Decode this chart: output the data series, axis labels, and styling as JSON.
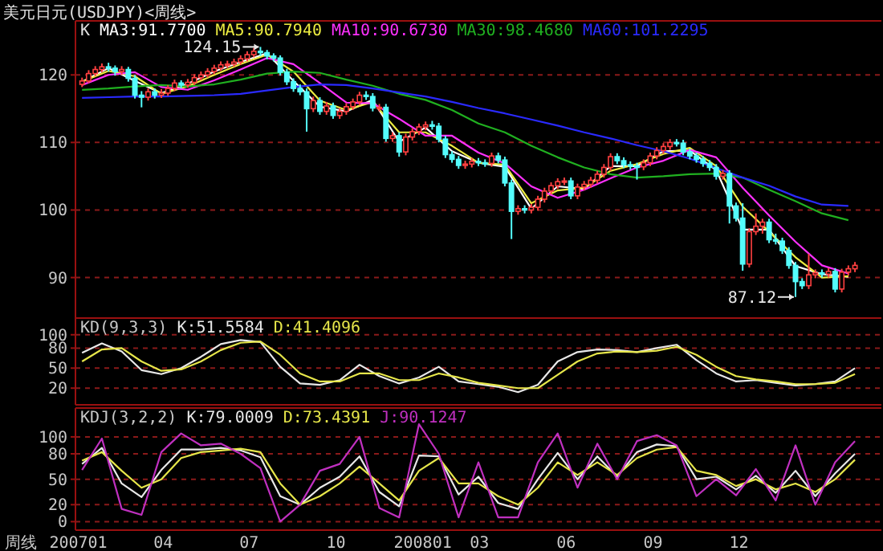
{
  "chart_data": [
    {
      "type": "candlestick",
      "title": "美元日元(USDJPY)<周线>",
      "xlim": [
        "2006-12-29",
        "2009-05-01"
      ],
      "ylim": [
        84,
        128
      ],
      "yticks": [
        90,
        100,
        110,
        120
      ],
      "grid": "y",
      "legend": "top left",
      "tick_labels": "y",
      "annotations": [
        "K",
        {
          "text": "124.15",
          "x": "2007-07-13",
          "y": 124.15
        },
        {
          "text": "87.12",
          "x": "2009-01-30",
          "y": 87.12
        }
      ],
      "x": [
        "2007-01-05",
        "2007-01-12",
        "2007-01-19",
        "2007-01-26",
        "2007-02-02",
        "2007-02-09",
        "2007-02-16",
        "2007-02-23",
        "2007-03-02",
        "2007-03-09",
        "2007-03-16",
        "2007-03-23",
        "2007-03-30",
        "2007-04-06",
        "2007-04-13",
        "2007-04-20",
        "2007-04-27",
        "2007-05-04",
        "2007-05-11",
        "2007-05-18",
        "2007-05-25",
        "2007-06-01",
        "2007-06-08",
        "2007-06-15",
        "2007-06-22",
        "2007-06-29",
        "2007-07-06",
        "2007-07-13",
        "2007-07-20",
        "2007-07-27",
        "2007-08-03",
        "2007-08-10",
        "2007-08-17",
        "2007-08-24",
        "2007-08-31",
        "2007-09-07",
        "2007-09-14",
        "2007-09-21",
        "2007-09-28",
        "2007-10-05",
        "2007-10-12",
        "2007-10-19",
        "2007-10-26",
        "2007-11-02",
        "2007-11-09",
        "2007-11-16",
        "2007-11-23",
        "2007-11-30",
        "2007-12-07",
        "2007-12-14",
        "2007-12-21",
        "2007-12-28",
        "2008-01-04",
        "2008-01-11",
        "2008-01-18",
        "2008-01-25",
        "2008-02-01",
        "2008-02-08",
        "2008-02-15",
        "2008-02-22",
        "2008-02-29",
        "2008-03-07",
        "2008-03-14",
        "2008-03-21",
        "2008-03-28",
        "2008-04-04",
        "2008-04-11",
        "2008-04-18",
        "2008-04-25",
        "2008-05-02",
        "2008-05-09",
        "2008-05-16",
        "2008-05-23",
        "2008-05-30",
        "2008-06-06",
        "2008-06-13",
        "2008-06-20",
        "2008-06-27",
        "2008-07-04",
        "2008-07-11",
        "2008-07-18",
        "2008-07-25",
        "2008-08-01",
        "2008-08-08",
        "2008-08-15",
        "2008-08-22",
        "2008-08-29",
        "2008-09-05",
        "2008-09-12",
        "2008-09-19",
        "2008-09-26",
        "2008-10-03",
        "2008-10-10",
        "2008-10-17",
        "2008-10-24",
        "2008-10-31",
        "2008-11-07",
        "2008-11-14",
        "2008-11-21",
        "2008-11-28",
        "2008-12-05",
        "2008-12-12",
        "2008-12-19",
        "2008-12-26",
        "2009-01-02",
        "2009-01-09",
        "2009-01-16",
        "2009-01-23",
        "2009-01-30",
        "2009-02-06",
        "2009-02-13",
        "2009-02-20",
        "2009-02-27",
        "2009-03-06",
        "2009-03-13",
        "2009-03-20",
        "2009-03-27",
        "2009-04-03"
      ],
      "ohlc": [
        [
          118.6,
          119.6,
          118.2,
          119.1
        ],
        [
          119.1,
          120.7,
          118.8,
          120.2
        ],
        [
          120.2,
          121.3,
          119.8,
          120.8
        ],
        [
          120.8,
          121.7,
          120.4,
          121.2
        ],
        [
          121.2,
          121.8,
          120.5,
          121.0
        ],
        [
          121.0,
          121.4,
          119.9,
          120.5
        ],
        [
          120.5,
          121.3,
          120.0,
          120.8
        ],
        [
          120.8,
          121.2,
          119.0,
          119.5
        ],
        [
          119.5,
          120.0,
          116.5,
          117.0
        ],
        [
          117.0,
          117.6,
          115.2,
          116.7
        ],
        [
          116.7,
          118.0,
          116.2,
          117.5
        ],
        [
          117.5,
          118.0,
          116.5,
          117.0
        ],
        [
          117.0,
          117.9,
          116.6,
          117.3
        ],
        [
          117.3,
          118.5,
          116.9,
          118.0
        ],
        [
          118.0,
          119.3,
          117.6,
          118.8
        ],
        [
          118.8,
          119.2,
          118.0,
          118.5
        ],
        [
          118.5,
          119.4,
          118.1,
          118.9
        ],
        [
          118.9,
          120.1,
          118.5,
          119.6
        ],
        [
          119.6,
          120.5,
          119.2,
          120.0
        ],
        [
          120.0,
          121.0,
          119.6,
          120.5
        ],
        [
          120.5,
          121.5,
          120.1,
          121.0
        ],
        [
          121.0,
          122.0,
          120.6,
          121.5
        ],
        [
          121.5,
          122.1,
          121.0,
          121.6
        ],
        [
          121.6,
          122.4,
          121.2,
          121.9
        ],
        [
          121.9,
          122.9,
          121.5,
          122.4
        ],
        [
          122.4,
          123.5,
          122.0,
          123.0
        ],
        [
          123.0,
          124.0,
          122.6,
          123.5
        ],
        [
          123.5,
          124.15,
          122.8,
          123.3
        ],
        [
          123.3,
          123.7,
          122.3,
          122.8
        ],
        [
          122.8,
          123.2,
          122.0,
          122.5
        ],
        [
          122.5,
          122.9,
          119.9,
          120.4
        ],
        [
          120.4,
          120.9,
          118.5,
          119.0
        ],
        [
          119.0,
          119.5,
          117.5,
          118.0
        ],
        [
          118.0,
          118.6,
          117.0,
          117.5
        ],
        [
          117.5,
          118.0,
          111.6,
          115.0
        ],
        [
          115.0,
          116.8,
          114.5,
          116.2
        ],
        [
          116.2,
          116.7,
          114.1,
          114.6
        ],
        [
          114.6,
          116.0,
          114.1,
          115.4
        ],
        [
          115.4,
          115.9,
          113.5,
          114.0
        ],
        [
          114.0,
          115.1,
          113.5,
          114.6
        ],
        [
          114.6,
          115.8,
          114.1,
          115.3
        ],
        [
          115.3,
          116.5,
          114.8,
          116.0
        ],
        [
          116.0,
          117.5,
          115.5,
          117.0
        ],
        [
          117.0,
          117.6,
          116.3,
          116.8
        ],
        [
          116.8,
          117.3,
          114.6,
          115.1
        ],
        [
          115.1,
          115.7,
          114.6,
          115.2
        ],
        [
          115.2,
          115.7,
          110.1,
          110.6
        ],
        [
          110.6,
          111.5,
          110.1,
          111.0
        ],
        [
          111.0,
          111.5,
          107.9,
          108.6
        ],
        [
          108.6,
          111.3,
          108.1,
          110.8
        ],
        [
          110.8,
          112.1,
          110.3,
          111.6
        ],
        [
          111.6,
          112.8,
          111.1,
          112.3
        ],
        [
          112.3,
          113.1,
          111.8,
          112.6
        ],
        [
          112.6,
          113.2,
          111.9,
          112.4
        ],
        [
          112.4,
          112.9,
          110.0,
          110.5
        ],
        [
          110.5,
          111.0,
          107.7,
          108.2
        ],
        [
          108.2,
          108.7,
          107.0,
          107.5
        ],
        [
          107.5,
          108.0,
          106.1,
          106.6
        ],
        [
          106.6,
          107.3,
          106.1,
          106.8
        ],
        [
          106.8,
          107.7,
          106.3,
          107.2
        ],
        [
          107.2,
          107.7,
          106.5,
          107.0
        ],
        [
          107.0,
          107.5,
          106.4,
          106.9
        ],
        [
          106.9,
          108.5,
          106.4,
          108.0
        ],
        [
          108.0,
          108.5,
          106.9,
          107.4
        ],
        [
          107.4,
          107.9,
          103.5,
          104.0
        ],
        [
          104.0,
          104.5,
          95.7,
          99.8
        ],
        [
          99.8,
          100.7,
          99.3,
          100.2
        ],
        [
          100.2,
          100.7,
          99.5,
          100.0
        ],
        [
          100.0,
          100.9,
          99.5,
          100.4
        ],
        [
          100.4,
          102.1,
          99.9,
          101.6
        ],
        [
          101.6,
          103.3,
          101.1,
          102.8
        ],
        [
          102.8,
          104.1,
          102.3,
          103.6
        ],
        [
          103.6,
          104.7,
          103.1,
          104.2
        ],
        [
          104.2,
          104.8,
          103.7,
          104.3
        ],
        [
          104.3,
          104.8,
          101.6,
          102.1
        ],
        [
          102.1,
          103.9,
          101.6,
          103.4
        ],
        [
          103.4,
          104.3,
          102.9,
          103.8
        ],
        [
          103.8,
          104.9,
          103.3,
          104.4
        ],
        [
          104.4,
          105.8,
          103.9,
          105.3
        ],
        [
          105.3,
          106.8,
          104.8,
          106.3
        ],
        [
          106.3,
          108.4,
          105.8,
          107.9
        ],
        [
          107.9,
          108.4,
          106.8,
          107.3
        ],
        [
          107.3,
          107.8,
          106.2,
          106.7
        ],
        [
          106.7,
          107.2,
          106.0,
          106.5
        ],
        [
          106.5,
          107.0,
          104.5,
          106.4
        ],
        [
          106.4,
          107.5,
          105.9,
          107.0
        ],
        [
          107.0,
          108.5,
          106.5,
          108.0
        ],
        [
          108.0,
          109.3,
          107.5,
          108.8
        ],
        [
          108.8,
          109.9,
          108.3,
          109.4
        ],
        [
          109.4,
          110.5,
          108.9,
          110.0
        ],
        [
          110.0,
          110.5,
          109.4,
          109.9
        ],
        [
          109.9,
          110.4,
          108.1,
          108.6
        ],
        [
          108.6,
          109.1,
          107.5,
          108.0
        ],
        [
          108.0,
          108.5,
          107.0,
          107.5
        ],
        [
          107.5,
          108.0,
          106.4,
          106.9
        ],
        [
          106.9,
          107.4,
          105.8,
          106.3
        ],
        [
          106.3,
          106.8,
          104.5,
          105.0
        ],
        [
          105.0,
          105.9,
          104.5,
          105.4
        ],
        [
          105.4,
          105.9,
          98.0,
          100.6
        ],
        [
          100.6,
          101.1,
          98.3,
          98.8
        ],
        [
          98.8,
          101.0,
          91.0,
          92.0
        ],
        [
          92.0,
          97.3,
          91.5,
          96.8
        ],
        [
          96.8,
          99.5,
          96.3,
          97.6
        ],
        [
          97.6,
          98.7,
          96.5,
          98.2
        ],
        [
          98.2,
          98.7,
          95.1,
          95.6
        ],
        [
          95.6,
          96.5,
          94.9,
          95.4
        ],
        [
          95.4,
          95.9,
          93.5,
          94.0
        ],
        [
          94.0,
          94.5,
          91.3,
          91.8
        ],
        [
          91.8,
          92.3,
          87.12,
          89.4
        ],
        [
          89.4,
          89.9,
          88.3,
          88.8
        ],
        [
          88.8,
          93.5,
          88.3,
          90.4
        ],
        [
          90.4,
          91.2,
          89.9,
          90.7
        ],
        [
          90.7,
          91.2,
          90.0,
          90.5
        ],
        [
          90.5,
          91.4,
          90.0,
          90.9
        ],
        [
          90.9,
          91.4,
          87.8,
          88.3
        ],
        [
          88.3,
          91.3,
          87.8,
          90.8
        ],
        [
          90.8,
          91.8,
          90.3,
          91.3
        ],
        [
          91.3,
          92.3,
          90.8,
          91.8
        ]
      ],
      "series": [
        {
          "type": "line",
          "name": "MA3:91.7700",
          "color": "#ffffff",
          "x": [
            "2007-01-05",
            "2007-02-02",
            "2007-03-02",
            "2007-03-30",
            "2007-04-27",
            "2007-05-25",
            "2007-06-22",
            "2007-07-20",
            "2007-08-17",
            "2007-09-14",
            "2007-10-12",
            "2007-11-09",
            "2007-12-07",
            "2008-01-04",
            "2008-02-01",
            "2008-02-29",
            "2008-03-28",
            "2008-04-25",
            "2008-05-23",
            "2008-06-20",
            "2008-07-18",
            "2008-08-15",
            "2008-09-12",
            "2008-10-10",
            "2008-11-07",
            "2008-12-05",
            "2009-01-02",
            "2009-01-30",
            "2009-02-27",
            "2009-03-27"
          ],
          "values": [
            119.0,
            121.0,
            119.1,
            117.3,
            118.7,
            120.5,
            121.9,
            123.2,
            119.1,
            115.3,
            114.6,
            116.3,
            110.1,
            112.2,
            108.7,
            107.0,
            106.4,
            100.2,
            103.5,
            103.1,
            106.5,
            106.5,
            108.7,
            108.8,
            105.9,
            97.1,
            97.1,
            91.7,
            90.5,
            90.1
          ]
        },
        {
          "type": "line",
          "name": "MA5:90.7940",
          "color": "#ecec40",
          "x": [
            "2007-01-05",
            "2007-02-02",
            "2007-03-02",
            "2007-03-30",
            "2007-04-27",
            "2007-05-25",
            "2007-06-22",
            "2007-07-20",
            "2007-08-17",
            "2007-09-14",
            "2007-10-12",
            "2007-11-09",
            "2007-12-07",
            "2008-01-04",
            "2008-02-01",
            "2008-02-29",
            "2008-03-28",
            "2008-04-25",
            "2008-05-23",
            "2008-06-20",
            "2008-07-18",
            "2008-08-15",
            "2008-09-12",
            "2008-10-10",
            "2008-11-07",
            "2008-12-05",
            "2009-01-02",
            "2009-01-30",
            "2009-02-27",
            "2009-03-27"
          ],
          "values": [
            119.0,
            120.6,
            119.8,
            117.2,
            118.3,
            120.0,
            121.6,
            123.0,
            120.5,
            116.2,
            114.8,
            116.0,
            111.5,
            111.5,
            109.5,
            107.0,
            106.7,
            101.0,
            102.9,
            103.3,
            105.8,
            106.8,
            108.3,
            109.2,
            106.5,
            100.5,
            96.8,
            93.0,
            90.0,
            90.2
          ]
        },
        {
          "type": "line",
          "name": "MA10:90.6730",
          "color": "#ff30ff",
          "x": [
            "2007-01-05",
            "2007-02-02",
            "2007-03-02",
            "2007-03-30",
            "2007-04-27",
            "2007-05-25",
            "2007-06-22",
            "2007-07-20",
            "2007-08-17",
            "2007-09-14",
            "2007-10-12",
            "2007-11-09",
            "2007-12-07",
            "2008-01-04",
            "2008-02-01",
            "2008-02-29",
            "2008-03-28",
            "2008-04-25",
            "2008-05-23",
            "2008-06-20",
            "2008-07-18",
            "2008-08-15",
            "2008-09-12",
            "2008-10-10",
            "2008-11-07",
            "2008-12-05",
            "2009-01-02",
            "2009-01-30",
            "2009-02-27",
            "2009-03-27"
          ],
          "values": [
            118.5,
            120.0,
            120.4,
            118.2,
            117.8,
            119.2,
            120.8,
            122.5,
            121.6,
            118.8,
            115.9,
            115.8,
            113.5,
            111.0,
            111.0,
            108.5,
            106.9,
            103.5,
            101.8,
            103.0,
            104.7,
            106.3,
            107.3,
            108.9,
            107.8,
            103.3,
            99.2,
            95.3,
            91.8,
            90.6
          ]
        },
        {
          "type": "line",
          "name": "MA30:98.4680",
          "color": "#20b020",
          "x": [
            "2007-01-05",
            "2007-02-02",
            "2007-03-02",
            "2007-03-30",
            "2007-04-27",
            "2007-05-25",
            "2007-06-22",
            "2007-07-20",
            "2007-08-17",
            "2007-09-14",
            "2007-10-12",
            "2007-11-09",
            "2007-12-07",
            "2008-01-04",
            "2008-02-01",
            "2008-02-29",
            "2008-03-28",
            "2008-04-25",
            "2008-05-23",
            "2008-06-20",
            "2008-07-18",
            "2008-08-15",
            "2008-09-12",
            "2008-10-10",
            "2008-11-07",
            "2008-12-05",
            "2009-01-02",
            "2009-01-30",
            "2009-02-27",
            "2009-03-27"
          ],
          "values": [
            117.8,
            118.0,
            118.3,
            118.5,
            118.3,
            118.6,
            119.3,
            120.2,
            120.5,
            120.3,
            119.3,
            118.4,
            117.2,
            116.3,
            114.8,
            112.8,
            111.5,
            109.5,
            107.8,
            106.3,
            105.3,
            104.8,
            105.0,
            105.3,
            105.4,
            104.8,
            103.0,
            101.3,
            99.5,
            98.5
          ]
        },
        {
          "type": "line",
          "name": "MA60:101.2295",
          "color": "#2a2aff",
          "x": [
            "2007-01-05",
            "2007-02-02",
            "2007-03-02",
            "2007-03-30",
            "2007-04-27",
            "2007-05-25",
            "2007-06-22",
            "2007-07-20",
            "2007-08-17",
            "2007-09-14",
            "2007-10-12",
            "2007-11-09",
            "2007-12-07",
            "2008-01-04",
            "2008-02-01",
            "2008-02-29",
            "2008-03-28",
            "2008-04-25",
            "2008-05-23",
            "2008-06-20",
            "2008-07-18",
            "2008-08-15",
            "2008-09-12",
            "2008-10-10",
            "2008-11-07",
            "2008-12-05",
            "2009-01-02",
            "2009-01-30",
            "2009-02-27",
            "2009-03-27"
          ],
          "values": [
            116.6,
            116.7,
            116.8,
            116.8,
            116.9,
            117.0,
            117.2,
            117.7,
            118.2,
            118.6,
            118.5,
            118.0,
            117.4,
            116.8,
            116.0,
            115.1,
            114.3,
            113.4,
            112.5,
            111.5,
            110.6,
            109.6,
            108.7,
            107.6,
            106.2,
            104.8,
            103.6,
            102.0,
            100.8,
            100.6
          ]
        }
      ]
    },
    {
      "type": "line",
      "title": "KD(9,3,3)",
      "xlim": [
        "2006-12-29",
        "2009-05-01"
      ],
      "ylim": [
        -5,
        125
      ],
      "yticks": [
        20,
        50,
        80,
        100
      ],
      "grid": "y",
      "legend": "top left",
      "tick_labels": "y",
      "x": [
        "2007-01-05",
        "2007-01-26",
        "2007-02-16",
        "2007-03-09",
        "2007-03-30",
        "2007-04-20",
        "2007-05-11",
        "2007-06-01",
        "2007-06-22",
        "2007-07-13",
        "2007-08-03",
        "2007-08-24",
        "2007-09-14",
        "2007-10-05",
        "2007-10-26",
        "2007-11-16",
        "2007-12-07",
        "2007-12-28",
        "2008-01-18",
        "2008-02-08",
        "2008-02-29",
        "2008-03-21",
        "2008-04-11",
        "2008-05-02",
        "2008-05-23",
        "2008-06-13",
        "2008-07-04",
        "2008-07-25",
        "2008-08-15",
        "2008-09-05",
        "2008-09-26",
        "2008-10-17",
        "2008-11-07",
        "2008-11-28",
        "2008-12-19",
        "2009-01-09",
        "2009-01-30",
        "2009-02-20",
        "2009-03-13",
        "2009-04-03"
      ],
      "series": [
        {
          "name": "K:51.5584",
          "color": "#e8e8e8",
          "values": [
            73,
            87,
            75,
            47,
            41,
            50,
            67,
            86,
            92,
            89,
            52,
            27,
            25,
            32,
            55,
            38,
            27,
            36,
            52,
            30,
            26,
            22,
            14,
            25,
            60,
            74,
            78,
            77,
            74,
            80,
            85,
            62,
            42,
            30,
            32,
            28,
            24,
            26,
            30,
            50
          ]
        },
        {
          "name": "D:41.4096",
          "color": "#e6e64a",
          "values": [
            60,
            78,
            80,
            60,
            46,
            48,
            60,
            77,
            88,
            90,
            70,
            42,
            30,
            30,
            42,
            42,
            32,
            32,
            42,
            36,
            28,
            24,
            20,
            20,
            40,
            60,
            72,
            75,
            74,
            76,
            82,
            70,
            52,
            38,
            33,
            30,
            26,
            26,
            28,
            41
          ]
        }
      ]
    },
    {
      "type": "line",
      "title": "KDJ(3,2,2)",
      "xlabel": "周线",
      "xlim": [
        "2006-12-29",
        "2009-05-01"
      ],
      "ylim": [
        -10,
        134
      ],
      "yticks": [
        0,
        20,
        50,
        80,
        100
      ],
      "grid": "y",
      "legend": "top left",
      "xticks": [
        {
          "value": "2007-01",
          "label": "200701"
        },
        {
          "value": "2007-04",
          "label": "04"
        },
        {
          "value": "2007-07",
          "label": "07"
        },
        {
          "value": "2007-10",
          "label": "10"
        },
        {
          "value": "2008-01",
          "label": "200801"
        },
        {
          "value": "2008-03",
          "label": "03"
        },
        {
          "value": "2008-06",
          "label": "06"
        },
        {
          "value": "2008-09",
          "label": "09"
        },
        {
          "value": "2008-12",
          "label": "12"
        }
      ],
      "x": [
        "2007-01-05",
        "2007-01-26",
        "2007-02-16",
        "2007-03-09",
        "2007-03-30",
        "2007-04-20",
        "2007-05-11",
        "2007-06-01",
        "2007-06-22",
        "2007-07-13",
        "2007-08-03",
        "2007-08-24",
        "2007-09-14",
        "2007-10-05",
        "2007-10-26",
        "2007-11-16",
        "2007-12-07",
        "2007-12-28",
        "2008-01-18",
        "2008-02-08",
        "2008-02-29",
        "2008-03-21",
        "2008-04-11",
        "2008-05-02",
        "2008-05-23",
        "2008-06-13",
        "2008-07-04",
        "2008-07-25",
        "2008-08-15",
        "2008-09-05",
        "2008-09-26",
        "2008-10-17",
        "2008-11-07",
        "2008-11-28",
        "2008-12-19",
        "2009-01-09",
        "2009-01-30",
        "2009-02-20",
        "2009-03-13",
        "2009-04-03"
      ],
      "series": [
        {
          "name": "K:79.0009",
          "color": "#e8e8e8",
          "values": [
            68,
            87,
            45,
            29,
            61,
            85,
            85,
            87,
            84,
            76,
            30,
            20,
            40,
            53,
            77,
            35,
            18,
            78,
            77,
            32,
            53,
            22,
            15,
            50,
            81,
            50,
            77,
            53,
            82,
            91,
            89,
            50,
            53,
            38,
            54,
            34,
            60,
            30,
            57,
            80
          ]
        },
        {
          "name": "D:73.4391",
          "color": "#e6e64a",
          "values": [
            72,
            82,
            60,
            40,
            50,
            75,
            82,
            84,
            86,
            82,
            45,
            20,
            30,
            45,
            65,
            45,
            25,
            60,
            75,
            45,
            45,
            30,
            20,
            40,
            70,
            55,
            70,
            55,
            75,
            85,
            88,
            60,
            55,
            42,
            50,
            38,
            45,
            35,
            50,
            73
          ]
        },
        {
          "name": "J:90.1247",
          "color": "#c030c0",
          "values": [
            61,
            98,
            15,
            8,
            82,
            104,
            90,
            92,
            80,
            63,
            0,
            20,
            60,
            68,
            100,
            16,
            5,
            115,
            80,
            5,
            70,
            5,
            5,
            70,
            104,
            40,
            92,
            50,
            95,
            102,
            90,
            30,
            50,
            31,
            62,
            25,
            90,
            20,
            70,
            95
          ]
        }
      ]
    }
  ]
}
